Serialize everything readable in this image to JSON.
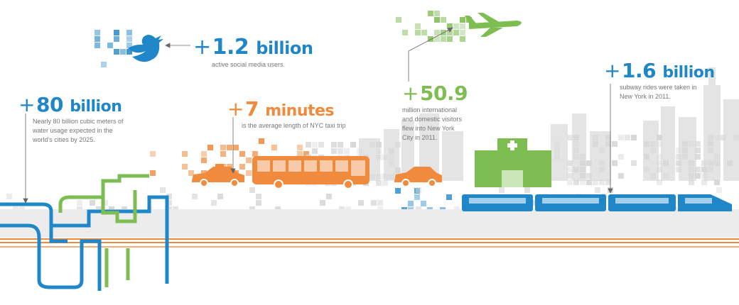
{
  "colors": {
    "blue": "#1f86c7",
    "orange": "#f08a3c",
    "green": "#7ebd52",
    "gray": "#d3d3d3",
    "text_gray": "#777777"
  },
  "icons": [
    "twitter-bird-icon",
    "airplane-icon",
    "taxi-icon",
    "bus-icon",
    "car-icon",
    "hospital-icon",
    "subway-train-icon",
    "water-pipes-icon",
    "city-skyline-icon"
  ],
  "stats": {
    "social": {
      "plus": "+",
      "value": "1.2",
      "unit": "billion",
      "desc": [
        "active social media users."
      ]
    },
    "water": {
      "plus": "+",
      "value": "80",
      "unit": "billion",
      "desc": [
        "Nearly 80 billion cubic meters of",
        "water usage expected in the",
        "world's cities by 2025."
      ]
    },
    "taxi": {
      "plus": "+",
      "value": "7",
      "unit": "minutes",
      "desc": [
        "is the average length of NYC taxi trip"
      ]
    },
    "visitors": {
      "plus": "+",
      "value": "50.9",
      "unit": "",
      "desc": [
        "million international",
        "and domestic visitors",
        "flew into New York",
        "City in 2011."
      ]
    },
    "subway": {
      "plus": "+",
      "value": "1.6",
      "unit": "billion",
      "desc": [
        "subway rides were taken in",
        "New York in 2011."
      ]
    }
  }
}
